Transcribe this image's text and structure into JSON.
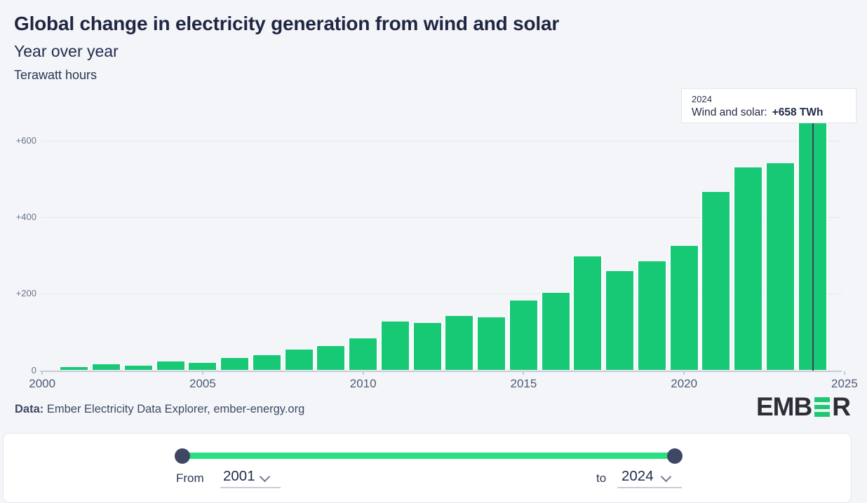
{
  "header": {
    "title": "Global change in electricity generation from wind and solar",
    "subtitle": "Year over year",
    "unit": "Terawatt hours"
  },
  "chart_data": {
    "type": "bar",
    "title": "Global change in electricity generation from wind and solar",
    "subtitle": "Year over year",
    "ylabel": "Terawatt hours",
    "series_name": "Wind and solar",
    "x": [
      2001,
      2002,
      2003,
      2004,
      2005,
      2006,
      2007,
      2008,
      2009,
      2010,
      2011,
      2012,
      2013,
      2014,
      2015,
      2016,
      2017,
      2018,
      2019,
      2020,
      2021,
      2022,
      2023,
      2024
    ],
    "values": [
      8,
      15,
      12,
      23,
      20,
      32,
      40,
      54,
      63,
      83,
      127,
      123,
      142,
      139,
      182,
      203,
      298,
      259,
      285,
      325,
      465,
      529,
      540,
      658
    ],
    "ylim": [
      0,
      660
    ],
    "yticks": [
      0,
      200,
      400,
      600
    ],
    "ytick_labels": [
      "0",
      "+200",
      "+400",
      "+600"
    ],
    "xticks": [
      2000,
      2005,
      2010,
      2015,
      2020,
      2025
    ],
    "xtick_labels": [
      "2000",
      "2005",
      "2010",
      "2015",
      "2020",
      "2025"
    ],
    "grid": true,
    "legend_position": "none",
    "bar_color": "#17c874",
    "highlight": {
      "year": 2024,
      "value_label": "+658 TWh"
    }
  },
  "tooltip": {
    "year": "2024",
    "label": "Wind and solar:",
    "value": "+658 TWh"
  },
  "footer": {
    "source_label": "Data:",
    "source_text": " Ember Electricity Data Explorer, ember-energy.org",
    "logo_left": "EMB",
    "logo_right": "R"
  },
  "controls": {
    "from_label": "From",
    "from_value": "2001",
    "to_label": "to",
    "to_value": "2024"
  },
  "colors": {
    "background": "#f3f5f8",
    "bar": "#17c874",
    "slider_track": "#2be080",
    "slider_handle": "#3e4763",
    "title_text": "#1f2642",
    "hover_line": "#39425e",
    "logo_green": "#1ec873"
  }
}
